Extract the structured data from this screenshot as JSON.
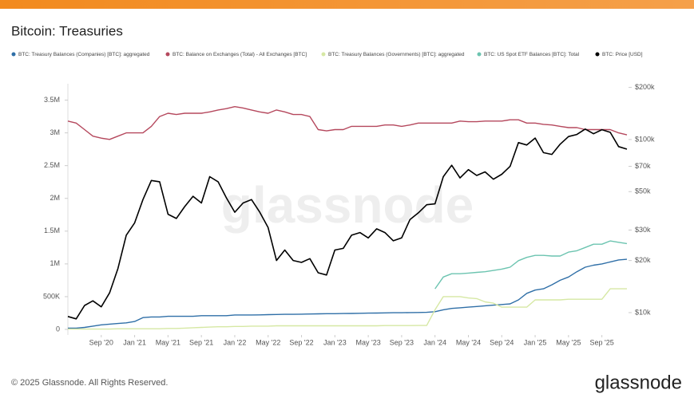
{
  "chart_data": {
    "type": "line",
    "title": "Bitcoin: Treasuries",
    "copyright": "© 2025 Glassnode. All Rights Reserved.",
    "brand": "glassnode",
    "x": [
      "2020-05",
      "2020-06",
      "2020-07",
      "2020-08",
      "2020-09",
      "2020-10",
      "2020-11",
      "2020-12",
      "2021-01",
      "2021-02",
      "2021-03",
      "2021-04",
      "2021-05",
      "2021-06",
      "2021-07",
      "2021-08",
      "2021-09",
      "2021-10",
      "2021-11",
      "2021-12",
      "2022-01",
      "2022-02",
      "2022-03",
      "2022-04",
      "2022-05",
      "2022-06",
      "2022-07",
      "2022-08",
      "2022-09",
      "2022-10",
      "2022-11",
      "2022-12",
      "2023-01",
      "2023-02",
      "2023-03",
      "2023-04",
      "2023-05",
      "2023-06",
      "2023-07",
      "2023-08",
      "2023-09",
      "2023-10",
      "2023-11",
      "2023-12",
      "2024-01",
      "2024-02",
      "2024-03",
      "2024-04",
      "2024-05",
      "2024-06",
      "2024-07",
      "2024-08",
      "2024-09",
      "2024-10",
      "2024-11",
      "2024-12",
      "2025-01",
      "2025-02",
      "2025-03",
      "2025-04",
      "2025-05",
      "2025-06",
      "2025-07",
      "2025-08",
      "2025-09",
      "2025-10",
      "2025-11",
      "2025-12"
    ],
    "xlim": [
      "2020-05",
      "2025-12"
    ],
    "xticks": [
      {
        "value": "2020-09",
        "label": "Sep '20"
      },
      {
        "value": "2021-01",
        "label": "Jan '21"
      },
      {
        "value": "2021-05",
        "label": "May '21"
      },
      {
        "value": "2021-09",
        "label": "Sep '21"
      },
      {
        "value": "2022-01",
        "label": "Jan '22"
      },
      {
        "value": "2022-05",
        "label": "May '22"
      },
      {
        "value": "2022-09",
        "label": "Sep '22"
      },
      {
        "value": "2023-01",
        "label": "Jan '23"
      },
      {
        "value": "2023-05",
        "label": "May '23"
      },
      {
        "value": "2023-09",
        "label": "Sep '23"
      },
      {
        "value": "2024-01",
        "label": "Jan '24"
      },
      {
        "value": "2024-05",
        "label": "May '24"
      },
      {
        "value": "2024-09",
        "label": "Sep '24"
      },
      {
        "value": "2025-01",
        "label": "Jan '25"
      },
      {
        "value": "2025-05",
        "label": "May '25"
      },
      {
        "value": "2025-09",
        "label": "Sep '25"
      }
    ],
    "ylim": [
      0,
      3750000
    ],
    "yticks": [
      0,
      {
        "value": 500000,
        "label": "500K"
      },
      {
        "value": 1000000,
        "label": "1M"
      },
      {
        "value": 1500000,
        "label": "1.5M"
      },
      {
        "value": 2000000,
        "label": "2M"
      },
      {
        "value": 2500000,
        "label": "2.5M"
      },
      {
        "value": 3000000,
        "label": "3M"
      },
      {
        "value": 3500000,
        "label": "3.5M"
      }
    ],
    "y2lim": [
      8000,
      210000
    ],
    "y2log": true,
    "y2ticks": [
      {
        "value": 10000,
        "label": "$10k"
      },
      {
        "value": 20000,
        "label": "$20k"
      },
      {
        "value": 30000,
        "label": "$30k"
      },
      {
        "value": 50000,
        "label": "$50k"
      },
      {
        "value": 70000,
        "label": "$70k"
      },
      {
        "value": 100000,
        "label": "$100k"
      },
      {
        "value": 200000,
        "label": "$200k"
      }
    ],
    "series": [
      {
        "name": "BTC: Treasury Balances (Companies) [BTC]: aggregated",
        "color": "#2f6fa7",
        "values": [
          20000,
          20000,
          30000,
          50000,
          70000,
          80000,
          90000,
          100000,
          120000,
          180000,
          190000,
          190000,
          200000,
          200000,
          200000,
          200000,
          210000,
          210000,
          210000,
          210000,
          220000,
          220000,
          220000,
          222000,
          225000,
          228000,
          230000,
          230000,
          232000,
          235000,
          238000,
          240000,
          240000,
          242000,
          244000,
          246000,
          248000,
          250000,
          252000,
          254000,
          255000,
          257000,
          258000,
          260000,
          270000,
          300000,
          320000,
          330000,
          340000,
          350000,
          360000,
          370000,
          380000,
          390000,
          450000,
          550000,
          600000,
          620000,
          680000,
          750000,
          800000,
          880000,
          950000,
          980000,
          1000000,
          1030000,
          1060000,
          1070000
        ]
      },
      {
        "name": "BTC: Balance on Exchanges (Total) - All Exchanges [BTC]",
        "color": "#b5485d",
        "values": [
          3180000,
          3150000,
          3050000,
          2950000,
          2920000,
          2900000,
          2950000,
          3000000,
          3000000,
          3000000,
          3100000,
          3250000,
          3300000,
          3280000,
          3300000,
          3300000,
          3300000,
          3320000,
          3350000,
          3370000,
          3400000,
          3380000,
          3350000,
          3320000,
          3300000,
          3350000,
          3320000,
          3280000,
          3280000,
          3250000,
          3050000,
          3030000,
          3050000,
          3050000,
          3100000,
          3100000,
          3100000,
          3100000,
          3120000,
          3120000,
          3100000,
          3120000,
          3150000,
          3150000,
          3150000,
          3150000,
          3150000,
          3180000,
          3170000,
          3170000,
          3180000,
          3180000,
          3180000,
          3200000,
          3200000,
          3150000,
          3150000,
          3130000,
          3120000,
          3100000,
          3080000,
          3080000,
          3050000,
          3050000,
          3050000,
          3050000,
          3000000,
          2970000
        ]
      },
      {
        "name": "BTC: Treasury Balances (Governments) [BTC]: aggregated",
        "color": "#d6e8a4",
        "values": [
          5000,
          5000,
          5000,
          5000,
          5000,
          5000,
          10000,
          10000,
          10000,
          10000,
          10000,
          10000,
          15000,
          15000,
          20000,
          25000,
          30000,
          35000,
          40000,
          40000,
          45000,
          45000,
          50000,
          50000,
          50000,
          55000,
          55000,
          55000,
          55000,
          55000,
          55000,
          55000,
          55000,
          55000,
          55000,
          55000,
          55000,
          55000,
          58000,
          58000,
          58000,
          58000,
          60000,
          60000,
          300000,
          500000,
          500000,
          500000,
          480000,
          470000,
          420000,
          400000,
          340000,
          340000,
          340000,
          340000,
          450000,
          450000,
          450000,
          450000,
          460000,
          460000,
          460000,
          460000,
          460000,
          620000,
          620000,
          620000
        ]
      },
      {
        "name": "BTC: US Spot ETF Balances [BTC]: Total",
        "color": "#6cc4b0",
        "values": [
          null,
          null,
          null,
          null,
          null,
          null,
          null,
          null,
          null,
          null,
          null,
          null,
          null,
          null,
          null,
          null,
          null,
          null,
          null,
          null,
          null,
          null,
          null,
          null,
          null,
          null,
          null,
          null,
          null,
          null,
          null,
          null,
          null,
          null,
          null,
          null,
          null,
          null,
          null,
          null,
          null,
          null,
          null,
          null,
          620000,
          800000,
          850000,
          850000,
          860000,
          870000,
          880000,
          900000,
          920000,
          950000,
          1050000,
          1100000,
          1130000,
          1130000,
          1120000,
          1120000,
          1180000,
          1200000,
          1250000,
          1300000,
          1300000,
          1350000,
          1330000,
          1310000
        ]
      },
      {
        "name": "BTC: Price [USD]",
        "color": "#000000",
        "axis": "y2",
        "values": [
          9500,
          9200,
          11000,
          11700,
          10800,
          13000,
          18000,
          28000,
          33000,
          45000,
          58000,
          57000,
          37000,
          35000,
          41000,
          47000,
          43000,
          61000,
          57000,
          46000,
          38000,
          43000,
          45000,
          38000,
          31000,
          20000,
          23000,
          20000,
          19500,
          20500,
          17000,
          16500,
          23000,
          23500,
          28000,
          29000,
          27000,
          30500,
          29000,
          26000,
          27000,
          34500,
          37700,
          42000,
          42500,
          61000,
          71000,
          60000,
          67000,
          62000,
          65000,
          59000,
          63000,
          70000,
          96000,
          93000,
          102000,
          84000,
          82000,
          94000,
          104000,
          107000,
          115000,
          108000,
          114000,
          110000,
          91000,
          88000
        ]
      }
    ]
  }
}
